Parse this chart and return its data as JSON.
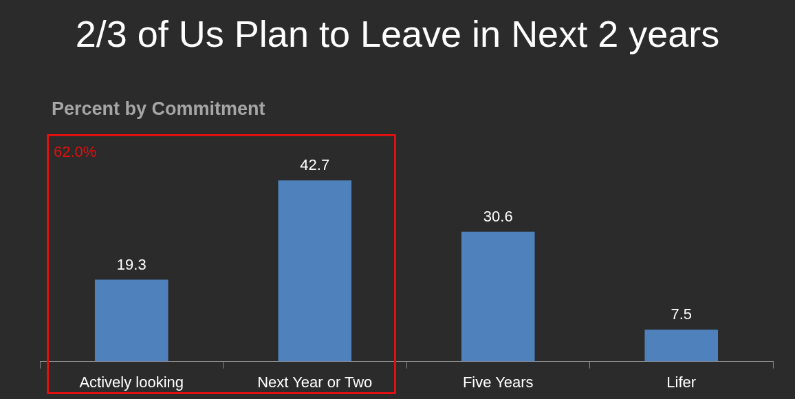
{
  "chart_data": {
    "type": "bar",
    "title": "2/3 of Us Plan to Leave in Next 2 years",
    "subtitle": "Percent by Commitment",
    "categories": [
      "Actively looking",
      "Next Year or Two",
      "Five Years",
      "Lifer"
    ],
    "values": [
      19.3,
      42.7,
      30.6,
      7.5
    ],
    "color": "#4f81bd",
    "data_labels": true,
    "annotations": [
      "62.0%"
    ]
  }
}
